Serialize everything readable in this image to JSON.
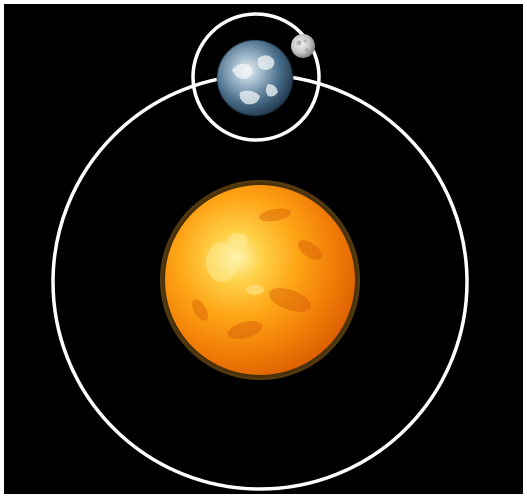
{
  "diagram": {
    "subject": "sun-earth-moon-orbits",
    "background_color": "#000000",
    "frame_color": "#ffffff",
    "orbit_color": "#ffffff",
    "bodies": [
      {
        "name": "sun",
        "color": "#ff9a0a",
        "highlight": "#fff0a0"
      },
      {
        "name": "earth",
        "color": "#4a6f8c",
        "highlight": "#e8f0f4"
      },
      {
        "name": "moon",
        "color": "#c8c8c8",
        "highlight": "#f0f0f0"
      }
    ],
    "orbits": [
      {
        "name": "earth-orbit",
        "around": "sun"
      },
      {
        "name": "moon-orbit",
        "around": "earth"
      }
    ]
  }
}
